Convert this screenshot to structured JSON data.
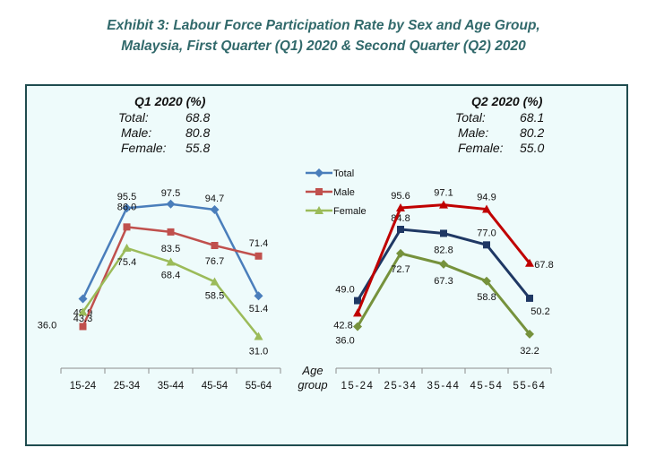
{
  "title": {
    "line1": "Exhibit 3: Labour Force Participation Rate by Sex and Age Group,",
    "line2": "Malaysia, First Quarter (Q1) 2020 & Second Quarter (Q2) 2020"
  },
  "legend": [
    "Total",
    "Male",
    "Female"
  ],
  "x_axis_label": [
    "Age",
    "group"
  ],
  "q1_summary": {
    "heading": "Q1 2020 (%)",
    "rows": [
      {
        "label": "Total:",
        "value": "68.8"
      },
      {
        "label": "Male:",
        "value": "80.8"
      },
      {
        "label": "Female:",
        "value": "55.8"
      }
    ]
  },
  "q2_summary": {
    "heading": "Q2 2020 (%)",
    "rows": [
      {
        "label": "Total:",
        "value": "68.1"
      },
      {
        "label": "Male:",
        "value": "80.2"
      },
      {
        "label": "Female:",
        "value": "55.0"
      }
    ]
  },
  "colors": {
    "title": "#31696b",
    "panel_bg": "#eefbfb",
    "q1_total": "#4a7ebb",
    "q1_male": "#c0504d",
    "q1_female": "#9bbb59",
    "q2_total": "#1f3864",
    "q2_male": "#c00000",
    "q2_female": "#76923c"
  },
  "chart_data": [
    {
      "type": "line",
      "title": "Q1 2020",
      "categories": [
        "15-24",
        "25-34",
        "35-44",
        "45-54",
        "55-64"
      ],
      "series": [
        {
          "name": "Total",
          "values": [
            49.9,
            95.5,
            97.5,
            94.7,
            51.4
          ],
          "labels": [
            "49.9",
            "95.5",
            "97.5",
            "94.7",
            "51.4"
          ]
        },
        {
          "name": "Male",
          "values": [
            36.0,
            86.0,
            83.5,
            76.7,
            71.4
          ],
          "labels": [
            "36.0",
            "86.0",
            "83.5",
            "76.7",
            "71.4"
          ]
        },
        {
          "name": "Female",
          "values": [
            43.3,
            75.4,
            68.4,
            58.5,
            31.0
          ],
          "labels": [
            "43.3",
            "75.4",
            "68.4",
            "58.5",
            "31.0"
          ]
        }
      ],
      "legend": "center"
    },
    {
      "type": "line",
      "title": "Q2 2020",
      "categories": [
        "15-24",
        "25-34",
        "35-44",
        "45-54",
        "55-64"
      ],
      "series": [
        {
          "name": "Total",
          "values": [
            49.0,
            84.8,
            82.8,
            77.0,
            50.2
          ],
          "labels": [
            "49.0",
            "84.8",
            "82.8",
            "77.0",
            "50.2"
          ]
        },
        {
          "name": "Male",
          "values": [
            42.8,
            95.6,
            97.1,
            94.9,
            67.8
          ],
          "labels": [
            "42.8",
            "95.6",
            "97.1",
            "94.9",
            "67.8"
          ]
        },
        {
          "name": "Female",
          "values": [
            36.0,
            72.7,
            67.3,
            58.8,
            32.2
          ],
          "labels": [
            "36.0",
            "72.7",
            "67.3",
            "58.8",
            "32.2"
          ]
        }
      ]
    }
  ]
}
